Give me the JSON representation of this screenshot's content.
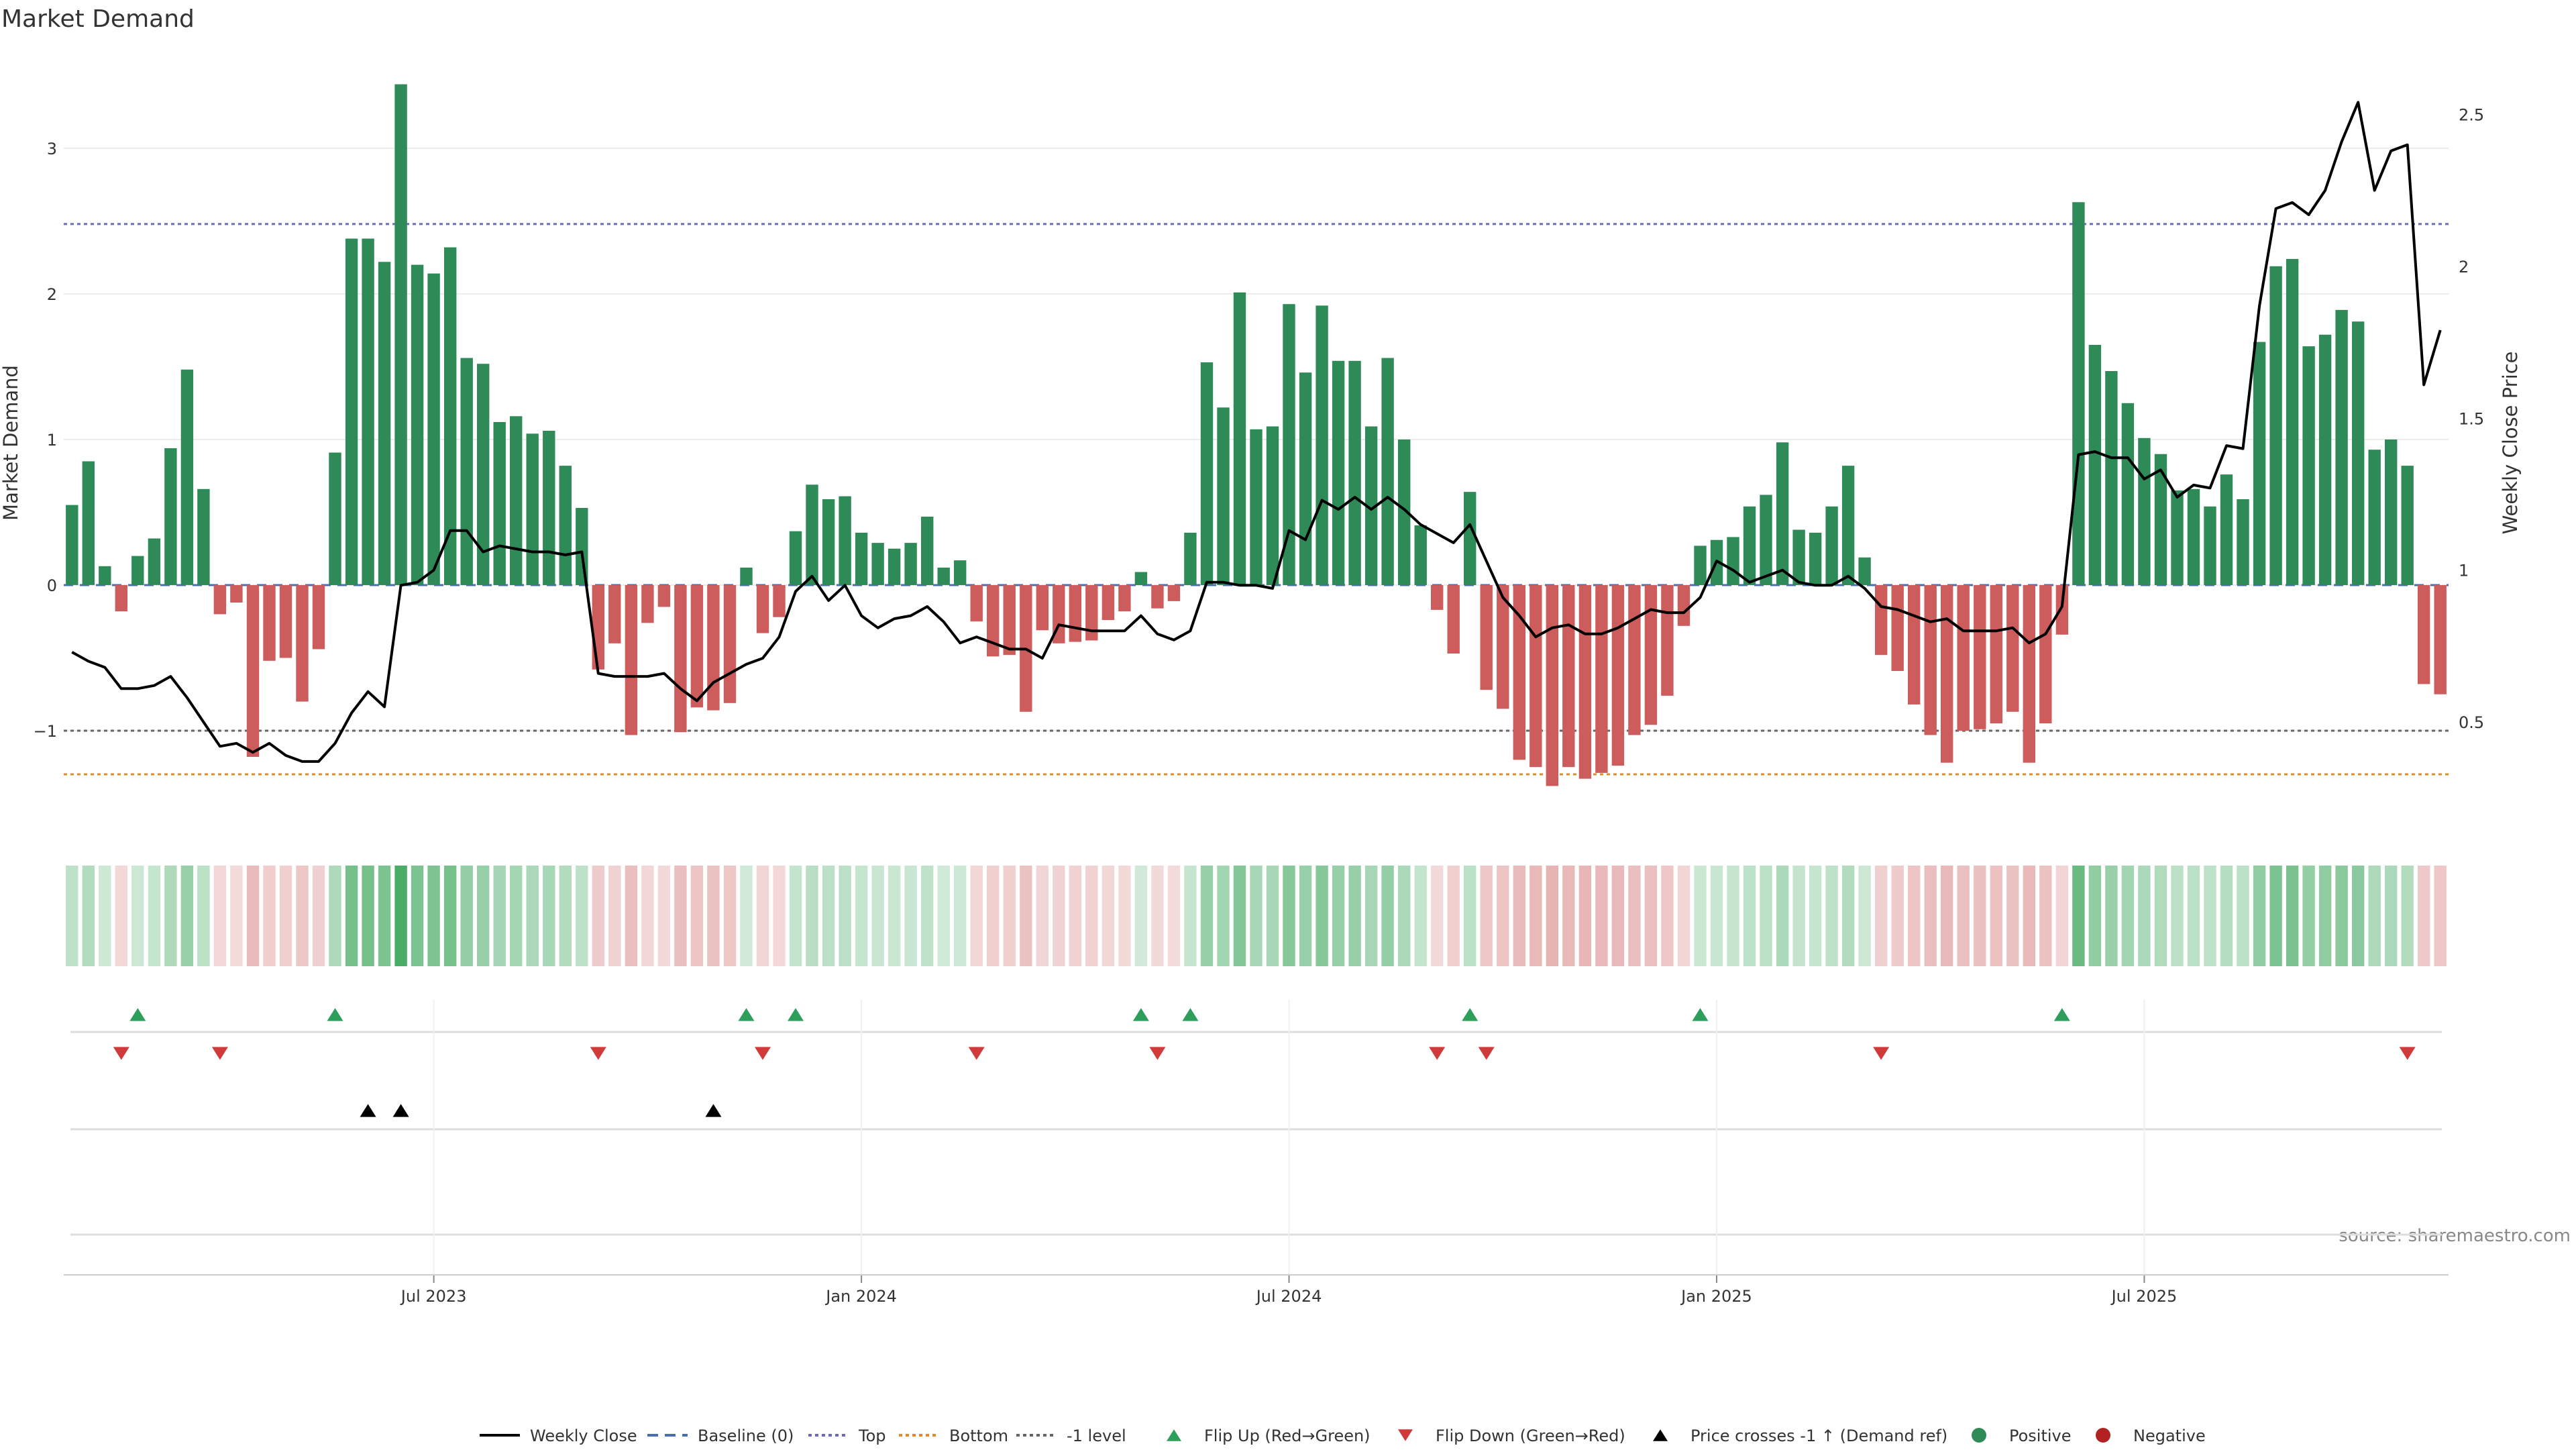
{
  "chart_data": {
    "type": "bar",
    "title": "Market Demand",
    "ylabel": "Market Demand",
    "y2label": "Weekly Close Price",
    "ylim": [
      -1.65,
      3.65
    ],
    "y2lim": [
      0.16,
      2.7
    ],
    "yticks": [
      "3",
      "2",
      "1",
      "0",
      "−1"
    ],
    "ytick_values": [
      3,
      2,
      1,
      0,
      -1
    ],
    "y2ticks": [
      "2.5",
      "2",
      "1.5",
      "1",
      "0.5"
    ],
    "y2tick_values": [
      2.5,
      2,
      1.5,
      1,
      0.5
    ],
    "xticks": [
      "Jul 2023",
      "Jan 2024",
      "Jul 2024",
      "Jan 2025",
      "Jul 2025"
    ],
    "xtick_week_index": [
      22,
      48,
      74,
      100,
      126
    ],
    "levels": {
      "top": 2.48,
      "minus_one": -1,
      "bottom": -1.3,
      "baseline": 0
    },
    "source": "source: sharemaestro.com",
    "demand": [
      0.55,
      0.85,
      0.13,
      -0.18,
      0.2,
      0.32,
      0.94,
      1.48,
      0.66,
      -0.2,
      -0.12,
      -1.18,
      -0.52,
      -0.5,
      -0.8,
      -0.44,
      0.91,
      2.38,
      2.38,
      2.22,
      3.44,
      2.2,
      2.14,
      2.32,
      1.56,
      1.52,
      1.12,
      1.16,
      1.04,
      1.06,
      0.82,
      0.53,
      -0.58,
      -0.4,
      -1.03,
      -0.26,
      -0.15,
      -1.01,
      -0.84,
      -0.86,
      -0.81,
      0.12,
      -0.33,
      -0.22,
      0.37,
      0.69,
      0.59,
      0.61,
      0.36,
      0.29,
      0.25,
      0.29,
      0.47,
      0.12,
      0.17,
      -0.25,
      -0.49,
      -0.48,
      -0.87,
      -0.31,
      -0.4,
      -0.39,
      -0.38,
      -0.24,
      -0.18,
      0.09,
      -0.16,
      -0.11,
      0.36,
      1.53,
      1.22,
      2.01,
      1.07,
      1.09,
      1.93,
      1.46,
      1.92,
      1.54,
      1.54,
      1.09,
      1.56,
      1.0,
      0.41,
      -0.17,
      -0.47,
      0.64,
      -0.72,
      -0.85,
      -1.2,
      -1.25,
      -1.38,
      -1.25,
      -1.33,
      -1.29,
      -1.24,
      -1.03,
      -0.96,
      -0.76,
      -0.28,
      0.27,
      0.31,
      0.33,
      0.54,
      0.62,
      0.98,
      0.38,
      0.36,
      0.54,
      0.82,
      0.19,
      -0.48,
      -0.59,
      -0.82,
      -1.03,
      -1.22,
      -1.0,
      -0.99,
      -0.95,
      -0.87,
      -1.22,
      -0.95,
      -0.34,
      2.63,
      1.65,
      1.47,
      1.25,
      1.01,
      0.9,
      0.65,
      0.66,
      0.54,
      0.76,
      0.59,
      1.67,
      2.19,
      2.24,
      1.64,
      1.72,
      1.89,
      1.81,
      0.93,
      1.0,
      0.82,
      -0.68,
      -0.75
    ],
    "close": [
      0.73,
      0.7,
      0.68,
      0.61,
      0.61,
      0.62,
      0.65,
      0.58,
      0.5,
      0.42,
      0.43,
      0.4,
      0.43,
      0.39,
      0.37,
      0.37,
      0.43,
      0.53,
      0.6,
      0.55,
      0.95,
      0.96,
      1.0,
      1.13,
      1.13,
      1.06,
      1.08,
      1.07,
      1.06,
      1.06,
      1.05,
      1.06,
      0.66,
      0.65,
      0.65,
      0.65,
      0.66,
      0.61,
      0.57,
      0.63,
      0.66,
      0.69,
      0.71,
      0.78,
      0.93,
      0.98,
      0.9,
      0.95,
      0.85,
      0.81,
      0.84,
      0.85,
      0.88,
      0.83,
      0.76,
      0.78,
      0.76,
      0.74,
      0.74,
      0.71,
      0.82,
      0.81,
      0.8,
      0.8,
      0.8,
      0.85,
      0.79,
      0.77,
      0.8,
      0.96,
      0.96,
      0.95,
      0.95,
      0.94,
      1.13,
      1.1,
      1.23,
      1.2,
      1.24,
      1.2,
      1.24,
      1.2,
      1.15,
      1.12,
      1.09,
      1.15,
      1.03,
      0.91,
      0.85,
      0.78,
      0.81,
      0.82,
      0.79,
      0.79,
      0.81,
      0.84,
      0.87,
      0.86,
      0.86,
      0.91,
      1.03,
      1.0,
      0.96,
      0.98,
      1.0,
      0.96,
      0.95,
      0.95,
      0.98,
      0.94,
      0.88,
      0.87,
      0.85,
      0.83,
      0.84,
      0.8,
      0.8,
      0.8,
      0.81,
      0.76,
      0.79,
      0.88,
      1.38,
      1.39,
      1.37,
      1.37,
      1.3,
      1.33,
      1.24,
      1.28,
      1.27,
      1.41,
      1.4,
      1.87,
      2.19,
      2.21,
      2.17,
      2.25,
      2.41,
      2.54,
      2.25,
      2.38,
      2.4,
      1.61,
      1.79
    ],
    "flip_up_week_index": [
      4,
      16,
      41,
      44,
      65,
      68,
      85,
      99,
      121
    ],
    "flip_down_week_index": [
      3,
      9,
      32,
      42,
      55,
      66,
      83,
      86,
      110,
      142
    ],
    "price_cross_week_index": [
      18,
      20,
      39
    ],
    "legend": [
      {
        "label": "Weekly Close",
        "kind": "line",
        "color": "#000000"
      },
      {
        "label": "Baseline (0)",
        "kind": "dash",
        "color": "#4a6fb0"
      },
      {
        "label": "Top",
        "kind": "dot",
        "color": "#6b6bc2"
      },
      {
        "label": "Bottom",
        "kind": "dot",
        "color": "#e08a2a"
      },
      {
        "label": "-1 level",
        "kind": "dot",
        "color": "#666666"
      },
      {
        "label": "Flip Up (Red→Green)",
        "kind": "tri-up",
        "color": "#2e9e5b"
      },
      {
        "label": "Flip Down (Green→Red)",
        "kind": "tri-down",
        "color": "#d03a3a"
      },
      {
        "label": "Price crosses -1 ↑ (Demand ref)",
        "kind": "tri-up",
        "color": "#000000"
      },
      {
        "label": "Positive",
        "kind": "circle",
        "color": "#2e8b57"
      },
      {
        "label": "Negative",
        "kind": "circle",
        "color": "#b22222"
      }
    ],
    "colors": {
      "positive": "#2e8b57",
      "negative": "#cd5c5c",
      "close": "#000000",
      "top": "#6b6bc2",
      "bottom": "#e08a2a",
      "minus_one": "#666666",
      "grid": "#ececec",
      "heat_pos": "#3aa55a",
      "heat_neg": "#d06a6a",
      "flip_up": "#2e9e5b",
      "flip_down": "#d03a3a",
      "cross": "#000000"
    }
  }
}
